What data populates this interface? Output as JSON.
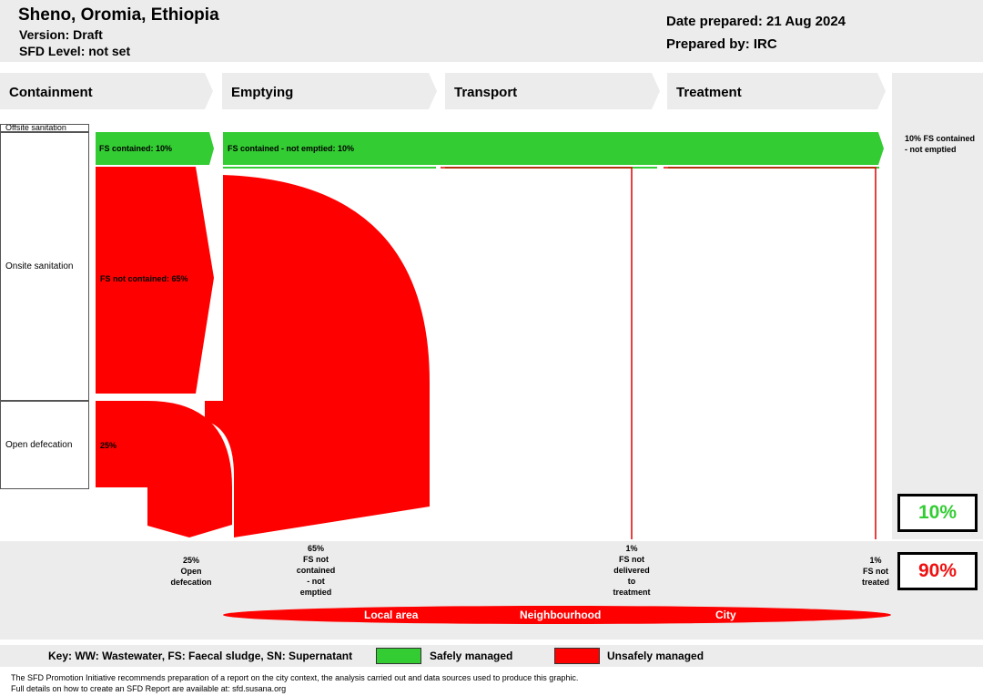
{
  "header": {
    "location": "Sheno, Oromia, Ethiopia",
    "version": "Version: Draft",
    "sfd_level": "SFD Level: not set",
    "date_prepared": "Date prepared: 21 Aug 2024",
    "prepared_by": "Prepared by: IRC"
  },
  "stages": [
    "Containment",
    "Emptying",
    "Transport",
    "Treatment"
  ],
  "side_labels": {
    "offsite": "Offsite sanitation",
    "onsite": "Onsite sanitation",
    "open_defecation": "Open defecation"
  },
  "flows": {
    "fs_contained": "FS contained: 10%",
    "fs_contained_not_emptied": "FS contained - not emptied: 10%",
    "fs_not_contained": "FS not contained: 65%",
    "open_defecation": "25%"
  },
  "outcome_right": "10% FS contained - not emptied",
  "annotations": {
    "open_defecation": [
      "25%",
      "Open",
      "defecation"
    ],
    "not_contained_not_emptied": [
      "65%",
      "FS not",
      "contained",
      "- not",
      "emptied"
    ],
    "not_delivered": [
      "1%",
      "FS not",
      "delivered",
      "to",
      "treatment"
    ],
    "not_treated": [
      "1%",
      "FS not",
      "treated"
    ]
  },
  "totals": {
    "safe": "10%",
    "unsafe": "90%",
    "safe_color": "#33cc33",
    "unsafe_color": "#ee1111"
  },
  "areas": [
    "Local area",
    "Neighbourhood",
    "City"
  ],
  "key": {
    "abbreviations": "Key: WW: Wastewater, FS: Faecal sludge, SN: Supernatant",
    "safe_label": "Safely managed",
    "unsafe_label": "Unsafely managed",
    "safe_color": "#33cc33",
    "unsafe_color": "#ff0000"
  },
  "footer": {
    "line1": "The SFD Promotion Initiative recommends preparation of a report on the city context, the analysis carried out and data sources used to produce this graphic.",
    "line2": "Full details on how to create an SFD Report are available at: sfd.susana.org"
  }
}
